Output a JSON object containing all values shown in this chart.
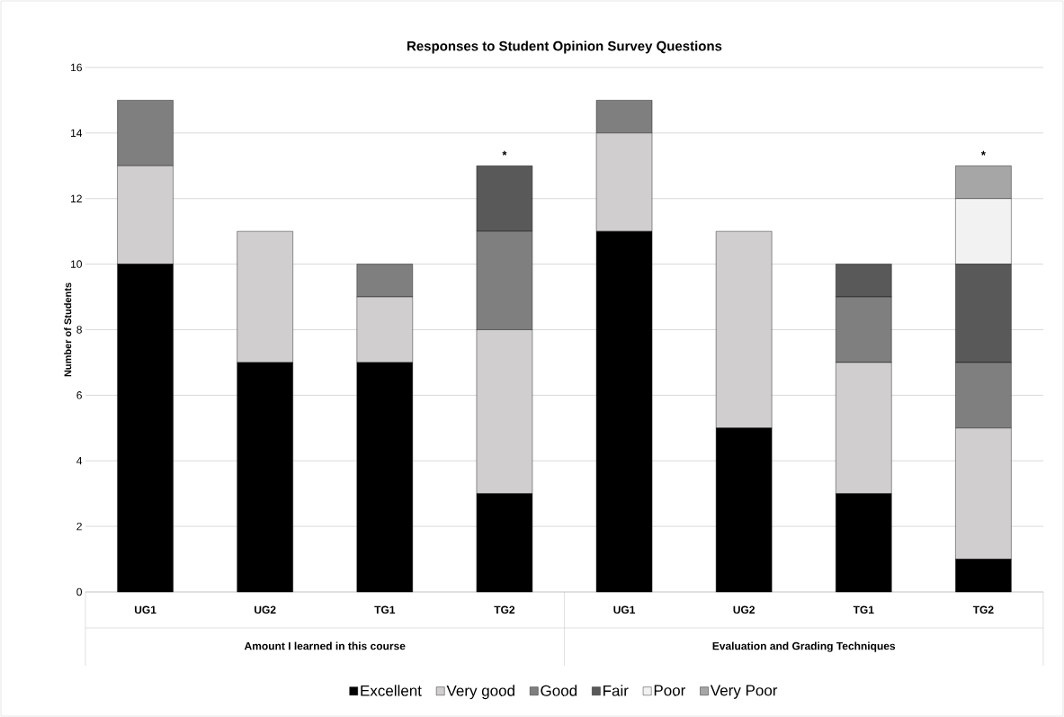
{
  "chart_data": {
    "type": "bar",
    "title": "Responses to Student Opinion Survey Questions",
    "ylabel": "Number of Students",
    "categories": [
      "UG1",
      "UG2",
      "TG1",
      "TG2",
      "UG1",
      "UG2",
      "TG1",
      "TG2"
    ],
    "stacked": true,
    "series": [
      {
        "name": "Excellent",
        "color": "#000000",
        "values": [
          10,
          7,
          7,
          3,
          11,
          5,
          3,
          1
        ]
      },
      {
        "name": "Very good",
        "color": "#d0cece",
        "values": [
          3,
          4,
          2,
          5,
          3,
          6,
          4,
          4
        ]
      },
      {
        "name": "Good",
        "color": "#7f7f7f",
        "values": [
          2,
          0,
          1,
          3,
          1,
          0,
          2,
          2
        ]
      },
      {
        "name": "Fair",
        "color": "#595959",
        "values": [
          0,
          0,
          0,
          2,
          0,
          0,
          1,
          3
        ]
      },
      {
        "name": "Poor",
        "color": "#f2f2f2",
        "values": [
          0,
          0,
          0,
          0,
          0,
          0,
          0,
          2
        ]
      },
      {
        "name": "Very Poor",
        "color": "#a6a6a6",
        "values": [
          0,
          0,
          0,
          0,
          0,
          0,
          0,
          1
        ]
      }
    ],
    "ylim": [
      0,
      16
    ],
    "yticks": [
      0,
      2,
      4,
      6,
      8,
      10,
      12,
      14,
      16
    ],
    "grid": "y",
    "legend": "bottom",
    "annotations": [
      "Amount I learned in this course",
      "Evaluation and Grading Techniques",
      {
        "text": "*",
        "x": "TG2",
        "y": 13
      },
      {
        "text": "*",
        "y": 13
      }
    ]
  }
}
